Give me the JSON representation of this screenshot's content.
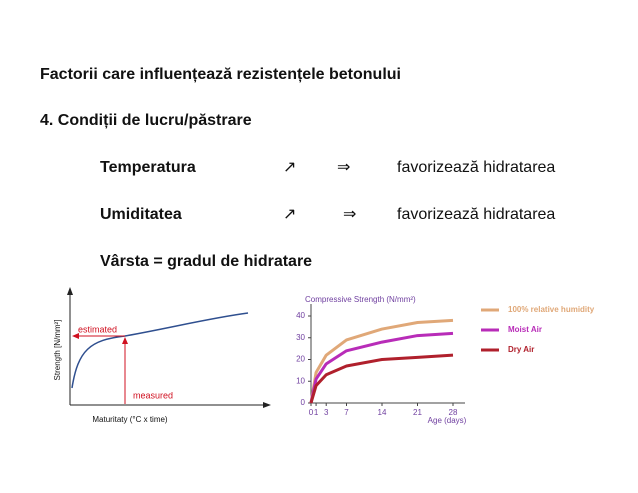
{
  "slide": {
    "title": "Factorii care influențează rezistențele betonului",
    "subtitle": "4. Condiții de lucru/păstrare",
    "rows": [
      {
        "factor": "Temperatura",
        "trend": "↗",
        "implies": "⇒",
        "effect": "favorizează hidratarea"
      },
      {
        "factor": "Umiditatea",
        "trend": "↗",
        "implies": "⇒",
        "effect": "favorizează hidratarea"
      }
    ],
    "age_line": "Vârsta = gradul de hidratare"
  },
  "schematic": {
    "y_label": "Strength [N/mm²]",
    "x_label": "Maturitaty (°C x time)",
    "estimated": "estimated",
    "measured": "measured"
  },
  "chart_data": {
    "type": "line",
    "title": "Compressive Strength (N/mm²)",
    "x_label": "Age (days)",
    "x": [
      0,
      1,
      3,
      7,
      14,
      21,
      28
    ],
    "xlim": [
      0,
      28
    ],
    "xticks": [
      0,
      1,
      3,
      7,
      14,
      21,
      28
    ],
    "ylim": [
      0,
      40
    ],
    "yticks": [
      0,
      10,
      20,
      30,
      40
    ],
    "series": [
      {
        "name": "100% relative humidity",
        "color": "#e0a878",
        "values": [
          0,
          14,
          22,
          29,
          34,
          37,
          38
        ]
      },
      {
        "name": "Moist Air",
        "color": "#b82cb8",
        "values": [
          0,
          11,
          18,
          24,
          28,
          31,
          32
        ]
      },
      {
        "name": "Dry Air",
        "color": "#b0202c",
        "values": [
          0,
          8,
          13,
          17,
          20,
          21,
          22
        ]
      }
    ]
  }
}
